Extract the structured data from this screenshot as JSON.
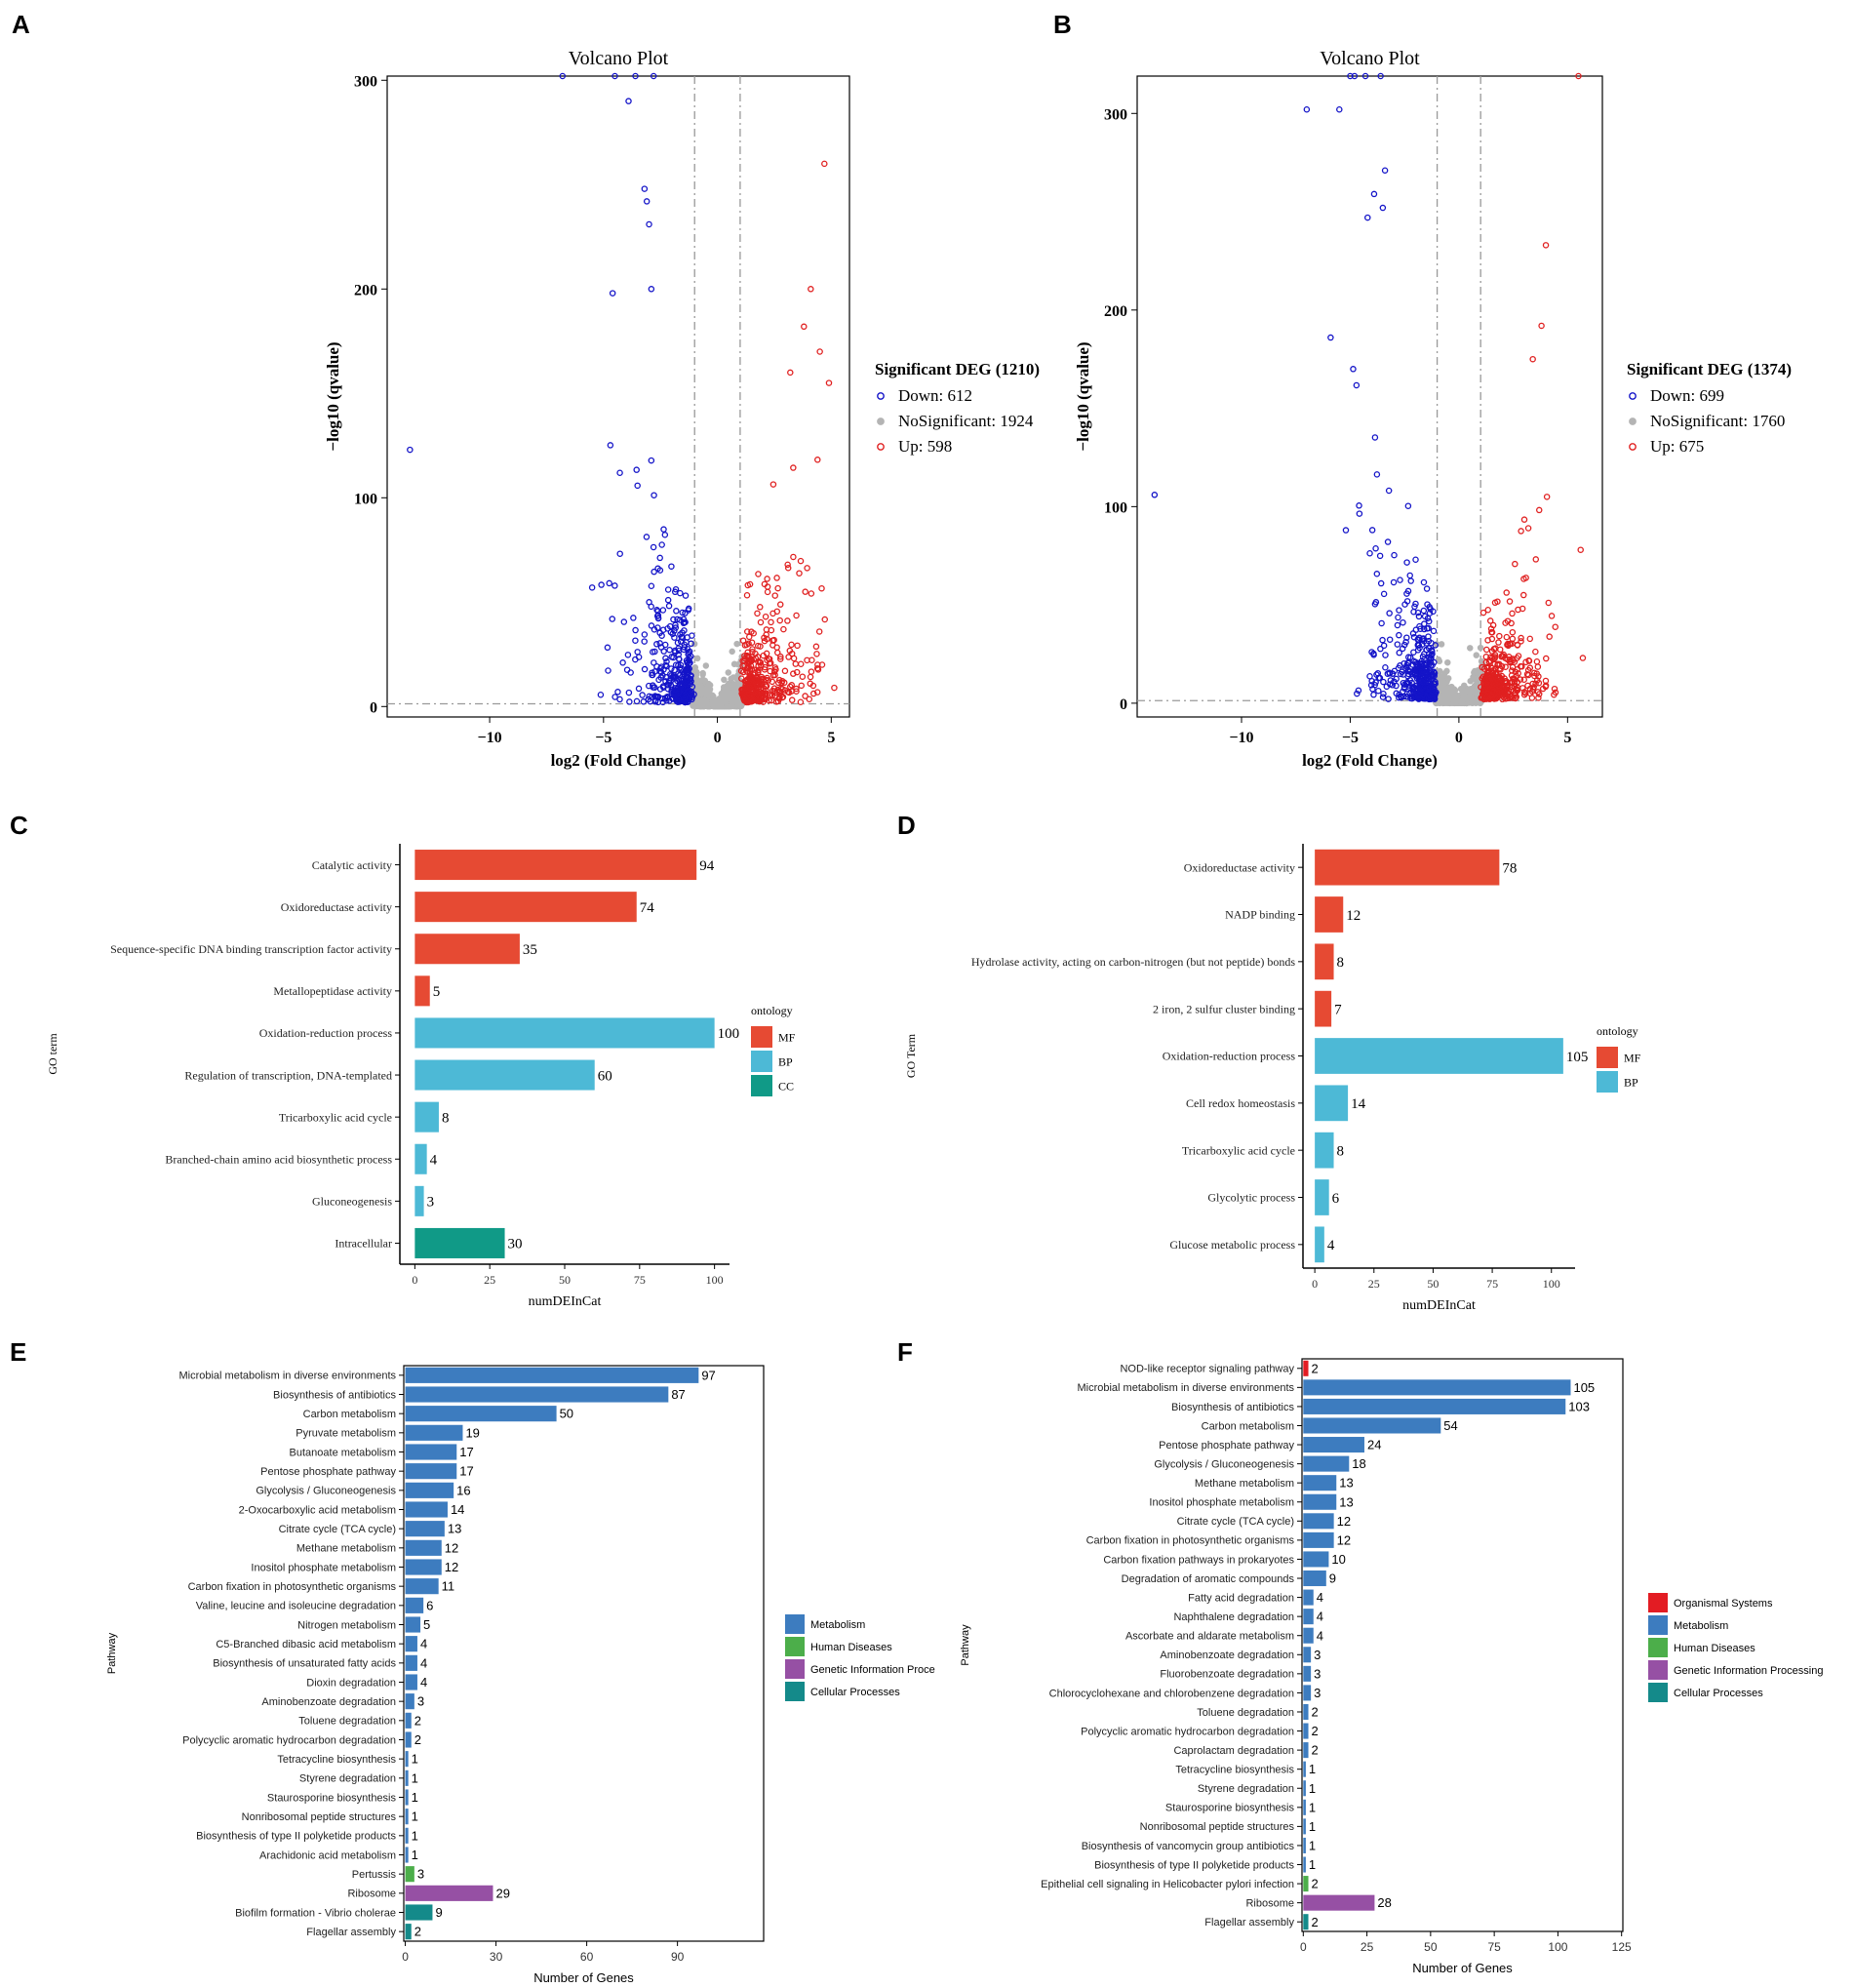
{
  "colors": {
    "down": "#1414c8",
    "up": "#e02020",
    "ns": "#b4b4b4",
    "MF": "#e64a33",
    "BP": "#4db9d6",
    "CC": "#109a87",
    "Metabolism": "#3d7cbf",
    "Human Diseases": "#4cae4a",
    "Genetic Information Processing": "#9650a4",
    "Cellular Processes": "#148a8a",
    "Organismal Systems": "#e31c23"
  },
  "chart_data": [
    {
      "panel": "A",
      "type": "scatter",
      "title": "Volcano Plot",
      "xlabel": "log2 (Fold Change)",
      "ylabel": "−log10 (qvalue)",
      "xlim": [
        -14.5,
        5.8
      ],
      "ylim": [
        -5,
        302
      ],
      "xticks": [
        -10,
        -5,
        0,
        5
      ],
      "yticks": [
        0,
        100,
        200,
        300
      ],
      "xtick_labels": [
        "−10",
        "−5",
        "0",
        "5"
      ],
      "ytick_labels": [
        "0",
        "100",
        "200",
        "300"
      ],
      "thresholds": {
        "fc": 1,
        "q": 1.3
      },
      "legend": {
        "title": "Significant DEG (1210)",
        "items": [
          "Down: 612",
          "NoSignificant: 1924",
          "Up: 598"
        ]
      },
      "counts": {
        "down": 612,
        "ns": 1924,
        "up": 598
      },
      "outliers": [
        {
          "x": -13.5,
          "y": 123,
          "g": "down"
        },
        {
          "x": -5.5,
          "y": 57,
          "g": "down"
        },
        {
          "x": -4.6,
          "y": 198,
          "g": "down"
        },
        {
          "x": -3.9,
          "y": 290,
          "g": "down"
        },
        {
          "x": -3.2,
          "y": 248,
          "g": "down"
        },
        {
          "x": -3.1,
          "y": 242,
          "g": "down"
        },
        {
          "x": -3.0,
          "y": 231,
          "g": "down"
        },
        {
          "x": -2.9,
          "y": 200,
          "g": "down"
        },
        {
          "x": -6.8,
          "y": 302,
          "g": "down"
        },
        {
          "x": -4.5,
          "y": 302,
          "g": "down"
        },
        {
          "x": -3.6,
          "y": 302,
          "g": "down"
        },
        {
          "x": -2.8,
          "y": 302,
          "g": "down"
        },
        {
          "x": 4.7,
          "y": 260,
          "g": "up"
        },
        {
          "x": 4.1,
          "y": 200,
          "g": "up"
        },
        {
          "x": 3.8,
          "y": 182,
          "g": "up"
        },
        {
          "x": 4.9,
          "y": 155,
          "g": "up"
        },
        {
          "x": 4.5,
          "y": 170,
          "g": "up"
        },
        {
          "x": 4.6,
          "y": 20,
          "g": "up"
        },
        {
          "x": 4.4,
          "y": 20,
          "g": "up"
        },
        {
          "x": 3.2,
          "y": 160,
          "g": "up"
        }
      ]
    },
    {
      "panel": "B",
      "type": "scatter",
      "title": "Volcano Plot",
      "xlabel": "log2 (Fold Change)",
      "ylabel": "−log10 (qvalue)",
      "xlim": [
        -14.8,
        6.6
      ],
      "ylim": [
        -7,
        319
      ],
      "xticks": [
        -10,
        -5,
        0,
        5
      ],
      "yticks": [
        0,
        100,
        200,
        300
      ],
      "xtick_labels": [
        "−10",
        "−5",
        "0",
        "5"
      ],
      "ytick_labels": [
        "0",
        "100",
        "200",
        "300"
      ],
      "thresholds": {
        "fc": 1,
        "q": 1.3
      },
      "legend": {
        "title": "Significant DEG (1374)",
        "items": [
          "Down: 699",
          "NoSignificant: 1760",
          "Up: 675"
        ]
      },
      "counts": {
        "down": 699,
        "ns": 1760,
        "up": 675
      },
      "outliers": [
        {
          "x": -14.0,
          "y": 106,
          "g": "down"
        },
        {
          "x": -7.0,
          "y": 302,
          "g": "down"
        },
        {
          "x": -5.5,
          "y": 302,
          "g": "down"
        },
        {
          "x": -5.9,
          "y": 186,
          "g": "down"
        },
        {
          "x": -5.2,
          "y": 88,
          "g": "down"
        },
        {
          "x": -3.4,
          "y": 271,
          "g": "down"
        },
        {
          "x": -3.9,
          "y": 259,
          "g": "down"
        },
        {
          "x": -3.5,
          "y": 252,
          "g": "down"
        },
        {
          "x": -4.2,
          "y": 247,
          "g": "down"
        },
        {
          "x": -5.0,
          "y": 319,
          "g": "down"
        },
        {
          "x": -4.3,
          "y": 319,
          "g": "down"
        },
        {
          "x": -3.6,
          "y": 319,
          "g": "down"
        },
        {
          "x": -4.8,
          "y": 319,
          "g": "down"
        },
        {
          "x": 5.5,
          "y": 319,
          "g": "up"
        },
        {
          "x": 4.0,
          "y": 233,
          "g": "up"
        },
        {
          "x": 3.8,
          "y": 192,
          "g": "up"
        },
        {
          "x": 5.6,
          "y": 78,
          "g": "up"
        },
        {
          "x": 5.7,
          "y": 23,
          "g": "up"
        },
        {
          "x": 3.4,
          "y": 175,
          "g": "up"
        }
      ]
    },
    {
      "panel": "C",
      "type": "bar",
      "orientation": "horizontal",
      "xlabel": "numDEInCat",
      "ylabel": "GO term",
      "xlim": [
        -5,
        105
      ],
      "xticks": [
        0,
        25,
        50,
        75,
        100
      ],
      "legend": {
        "title": "ontology",
        "items": [
          "MF",
          "BP",
          "CC"
        ]
      },
      "categories": [
        "Catalytic activity",
        "Oxidoreductase activity",
        "Sequence-specific DNA binding transcription factor activity",
        "Metallopeptidase activity",
        "Oxidation-reduction process",
        "Regulation of transcription, DNA-templated",
        "Tricarboxylic acid cycle",
        "Branched-chain amino acid biosynthetic process",
        "Gluconeogenesis",
        "Intracellular"
      ],
      "values": [
        94,
        74,
        35,
        5,
        100,
        60,
        8,
        4,
        3,
        30
      ],
      "groups": [
        "MF",
        "MF",
        "MF",
        "MF",
        "BP",
        "BP",
        "BP",
        "BP",
        "BP",
        "CC"
      ]
    },
    {
      "panel": "D",
      "type": "bar",
      "orientation": "horizontal",
      "xlabel": "numDEInCat",
      "ylabel": "GO Term",
      "xlim": [
        -5,
        110
      ],
      "xticks": [
        0,
        25,
        50,
        75,
        100
      ],
      "legend": {
        "title": "ontology",
        "items": [
          "MF",
          "BP"
        ]
      },
      "categories": [
        "Oxidoreductase activity",
        "NADP binding",
        "Hydrolase activity, acting on carbon-nitrogen (but not peptide) bonds",
        "2 iron, 2 sulfur cluster binding",
        "Oxidation-reduction process",
        "Cell redox homeostasis",
        "Tricarboxylic acid cycle",
        "Glycolytic process",
        "Glucose metabolic process"
      ],
      "values": [
        78,
        12,
        8,
        7,
        105,
        14,
        8,
        6,
        4
      ],
      "groups": [
        "MF",
        "MF",
        "MF",
        "MF",
        "BP",
        "BP",
        "BP",
        "BP",
        "BP"
      ]
    },
    {
      "panel": "E",
      "type": "bar",
      "orientation": "horizontal",
      "xlabel": "Number of Genes",
      "ylabel": "Pathway",
      "xlim": [
        -0.5,
        118.5
      ],
      "xticks": [
        0,
        30,
        60,
        90
      ],
      "legend": {
        "items": [
          "Metabolism",
          "Human Diseases",
          "Genetic Information Proce",
          "Cellular Processes"
        ]
      },
      "legend_keys": [
        "Metabolism",
        "Human Diseases",
        "Genetic Information Processing",
        "Cellular Processes"
      ],
      "categories": [
        "Microbial metabolism in diverse environments",
        "Biosynthesis of antibiotics",
        "Carbon metabolism",
        "Pyruvate metabolism",
        "Butanoate metabolism",
        "Pentose phosphate pathway",
        "Glycolysis / Gluconeogenesis",
        "2-Oxocarboxylic acid metabolism",
        "Citrate cycle (TCA cycle)",
        "Methane metabolism",
        "Inositol phosphate metabolism",
        "Carbon fixation in photosynthetic organisms",
        "Valine, leucine and isoleucine degradation",
        "Nitrogen metabolism",
        "C5-Branched dibasic acid metabolism",
        "Biosynthesis of unsaturated fatty acids",
        "Dioxin degradation",
        "Aminobenzoate degradation",
        "Toluene degradation",
        "Polycyclic aromatic hydrocarbon degradation",
        "Tetracycline biosynthesis",
        "Styrene degradation",
        "Staurosporine biosynthesis",
        "Nonribosomal peptide structures",
        "Biosynthesis of type II polyketide products",
        "Arachidonic acid metabolism",
        "Pertussis",
        "Ribosome",
        "Biofilm formation - Vibrio cholerae",
        "Flagellar assembly"
      ],
      "values": [
        97,
        87,
        50,
        19,
        17,
        17,
        16,
        14,
        13,
        12,
        12,
        11,
        6,
        5,
        4,
        4,
        4,
        3,
        2,
        2,
        1,
        1,
        1,
        1,
        1,
        1,
        3,
        29,
        9,
        2
      ],
      "groups": [
        "Metabolism",
        "Metabolism",
        "Metabolism",
        "Metabolism",
        "Metabolism",
        "Metabolism",
        "Metabolism",
        "Metabolism",
        "Metabolism",
        "Metabolism",
        "Metabolism",
        "Metabolism",
        "Metabolism",
        "Metabolism",
        "Metabolism",
        "Metabolism",
        "Metabolism",
        "Metabolism",
        "Metabolism",
        "Metabolism",
        "Metabolism",
        "Metabolism",
        "Metabolism",
        "Metabolism",
        "Metabolism",
        "Metabolism",
        "Human Diseases",
        "Genetic Information Processing",
        "Cellular Processes",
        "Cellular Processes"
      ]
    },
    {
      "panel": "F",
      "type": "bar",
      "orientation": "horizontal",
      "xlabel": "Number of Genes",
      "ylabel": "Pathway",
      "xlim": [
        -0.5,
        125.5
      ],
      "xticks": [
        0,
        25,
        50,
        75,
        100,
        125
      ],
      "legend": {
        "items": [
          "Organismal Systems",
          "Metabolism",
          "Human Diseases",
          "Genetic Information Processing",
          "Cellular Processes"
        ]
      },
      "legend_keys": [
        "Organismal Systems",
        "Metabolism",
        "Human Diseases",
        "Genetic Information Processing",
        "Cellular Processes"
      ],
      "categories": [
        "NOD-like receptor signaling pathway",
        "Microbial metabolism in diverse environments",
        "Biosynthesis of antibiotics",
        "Carbon metabolism",
        "Pentose phosphate pathway",
        "Glycolysis / Gluconeogenesis",
        "Methane metabolism",
        "Inositol phosphate metabolism",
        "Citrate cycle (TCA cycle)",
        "Carbon fixation in photosynthetic organisms",
        "Carbon fixation pathways in prokaryotes",
        "Degradation of aromatic compounds",
        "Fatty acid degradation",
        "Naphthalene degradation",
        "Ascorbate and aldarate metabolism",
        "Aminobenzoate degradation",
        "Fluorobenzoate degradation",
        "Chlorocyclohexane and chlorobenzene degradation",
        "Toluene degradation",
        "Polycyclic aromatic hydrocarbon degradation",
        "Caprolactam degradation",
        "Tetracycline biosynthesis",
        "Styrene degradation",
        "Staurosporine biosynthesis",
        "Nonribosomal peptide structures",
        "Biosynthesis of vancomycin group antibiotics",
        "Biosynthesis of type II polyketide products",
        "Epithelial cell signaling in Helicobacter pylori infection",
        "Ribosome",
        "Flagellar assembly"
      ],
      "values": [
        2,
        105,
        103,
        54,
        24,
        18,
        13,
        13,
        12,
        12,
        10,
        9,
        4,
        4,
        4,
        3,
        3,
        3,
        2,
        2,
        2,
        1,
        1,
        1,
        1,
        1,
        1,
        2,
        28,
        2
      ],
      "groups": [
        "Organismal Systems",
        "Metabolism",
        "Metabolism",
        "Metabolism",
        "Metabolism",
        "Metabolism",
        "Metabolism",
        "Metabolism",
        "Metabolism",
        "Metabolism",
        "Metabolism",
        "Metabolism",
        "Metabolism",
        "Metabolism",
        "Metabolism",
        "Metabolism",
        "Metabolism",
        "Metabolism",
        "Metabolism",
        "Metabolism",
        "Metabolism",
        "Metabolism",
        "Metabolism",
        "Metabolism",
        "Metabolism",
        "Metabolism",
        "Metabolism",
        "Human Diseases",
        "Genetic Information Processing",
        "Cellular Processes"
      ]
    }
  ]
}
